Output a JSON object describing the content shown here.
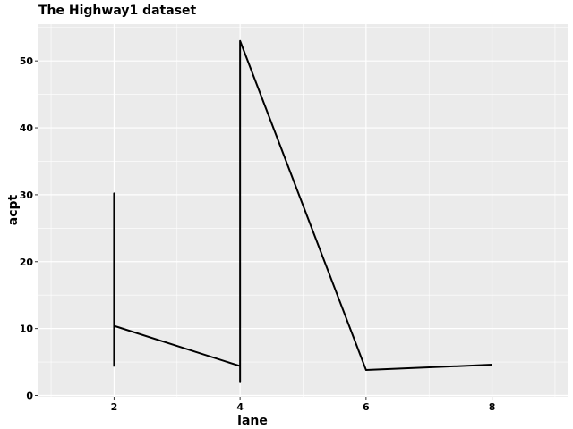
{
  "chart_data": {
    "type": "line",
    "title": "The Highway1 dataset",
    "xlabel": "lane",
    "ylabel": "acpt",
    "xlim": [
      0.8,
      9.2
    ],
    "ylim": [
      -0.2,
      55.5
    ],
    "xticks": [
      2,
      4,
      6,
      8
    ],
    "yticks": [
      0,
      10,
      20,
      30,
      40,
      50
    ],
    "grid": true,
    "panel_background": "#EBEBEB",
    "grid_color": "#FFFFFF",
    "line_color": "#000000",
    "series": [
      {
        "x": [
          2,
          2,
          2,
          4,
          4,
          4,
          6,
          8
        ],
        "y": [
          4.3,
          30.2,
          10.4,
          4.4,
          2.1,
          53.0,
          3.8,
          4.6
        ]
      }
    ]
  }
}
